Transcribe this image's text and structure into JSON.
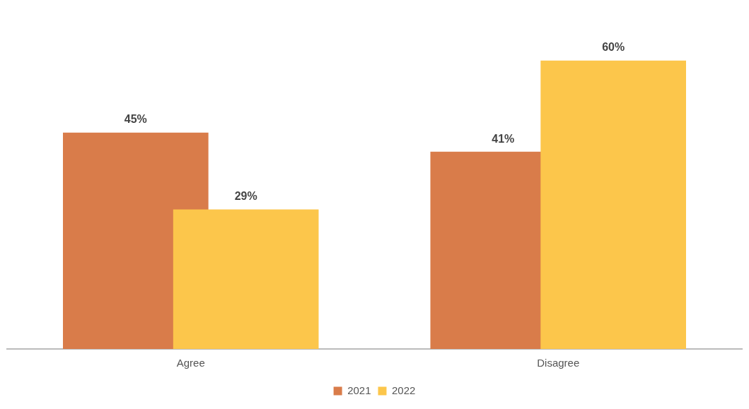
{
  "chart_data": {
    "type": "bar",
    "categories": [
      "Agree",
      "Disagree"
    ],
    "series": [
      {
        "name": "2021",
        "color": "#d97c4a",
        "values": [
          45,
          41
        ],
        "value_labels": [
          "45%",
          "41%"
        ]
      },
      {
        "name": "2022",
        "color": "#fcc64b",
        "values": [
          29,
          60
        ],
        "value_labels": [
          "29%",
          "60%"
        ]
      }
    ],
    "legend": "bottom",
    "grid": false
  }
}
